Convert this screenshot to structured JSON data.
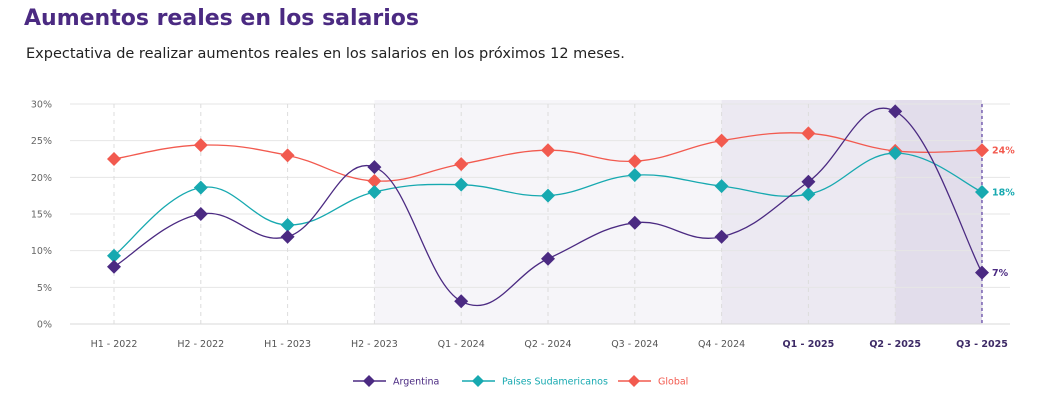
{
  "header": {
    "title": "Aumentos reales en los salarios",
    "subtitle": "Expectativa de realizar aumentos reales en los salarios en los próximos 12 meses."
  },
  "chart_data": {
    "type": "line",
    "title": "",
    "xlabel": "",
    "ylabel": "",
    "categories": [
      "H1 - 2022",
      "H2 - 2022",
      "H1 - 2023",
      "H2 - 2023",
      "Q1 - 2024",
      "Q2 - 2024",
      "Q3 - 2024",
      "Q4 - 2024",
      "Q1 - 2025",
      "Q2 - 2025",
      "Q3 - 2025"
    ],
    "bold_categories_from": "Q1 - 2025",
    "ylim": [
      0,
      30
    ],
    "yticks": [
      "0%",
      "5%",
      "10%",
      "15%",
      "20%",
      "25%",
      "30%"
    ],
    "yticks_values": [
      0,
      5,
      10,
      15,
      20,
      25,
      30
    ],
    "grid": true,
    "legend_position": "bottom",
    "series": [
      {
        "name": "Argentina",
        "color": "#4b2a82",
        "values": [
          7.8,
          15,
          11.9,
          21.4,
          3.1,
          8.9,
          13.8,
          11.9,
          19.4,
          29,
          7
        ],
        "end_label": "7%"
      },
      {
        "name": "Países Sudamericanos",
        "color": "#17a9b0",
        "values": [
          9.3,
          18.6,
          13.5,
          18,
          19,
          17.5,
          20.3,
          18.8,
          17.7,
          23.3,
          18
        ],
        "end_label": "18%"
      },
      {
        "name": "Global",
        "color": "#f25a4f",
        "values": [
          22.5,
          24.4,
          23,
          19.5,
          21.8,
          23.7,
          22.2,
          25,
          26,
          23.6,
          23.7
        ],
        "end_label": "24%"
      }
    ],
    "shaded_periods": [
      {
        "from": "H2 - 2023",
        "to": "Q4 - 2024",
        "color": "#f6f5f9"
      },
      {
        "from": "Q4 - 2024",
        "to": "Q2 - 2025",
        "color": "#ece9f2"
      },
      {
        "from": "Q2 - 2025",
        "to": "Q3 - 2025",
        "color": "#e2ddeb"
      }
    ],
    "highlight_line_at": "Q3 - 2025"
  }
}
